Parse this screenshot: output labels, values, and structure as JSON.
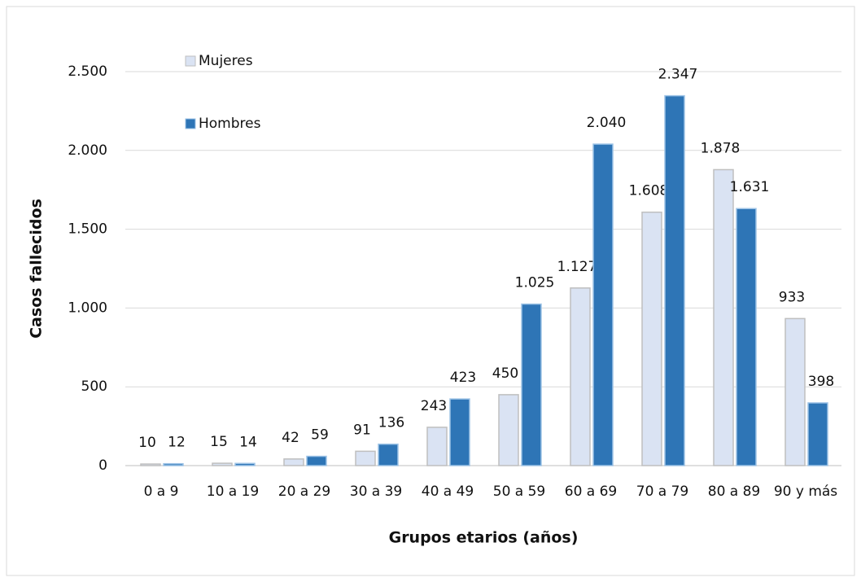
{
  "chart_data": {
    "type": "bar",
    "x_label": "Grupos etarios (años)",
    "y_label": "Casos fallecidos",
    "categories": [
      "0 a 9",
      "10 a 19",
      "20 a 29",
      "30 a 39",
      "40 a 49",
      "50 a 59",
      "60 a 69",
      "70 a 79",
      "80 a 89",
      "90 y más"
    ],
    "series": [
      {
        "name": "Mujeres",
        "color": "#dae3f3",
        "values": [
          10,
          15,
          42,
          91,
          243,
          450,
          1127,
          1608,
          1878,
          933
        ],
        "value_labels": [
          "10",
          "15",
          "42",
          "91",
          "243",
          "450",
          "1.127",
          "1.608",
          "1.878",
          "933"
        ]
      },
      {
        "name": "Hombres",
        "color": "#2e75b6",
        "values": [
          12,
          14,
          59,
          136,
          423,
          1025,
          2040,
          2347,
          1631,
          398
        ],
        "value_labels": [
          "12",
          "14",
          "59",
          "136",
          "423",
          "1.025",
          "2.040",
          "2.347",
          "1.631",
          "398"
        ]
      }
    ],
    "ylim": [
      0,
      2500
    ],
    "yticks": [
      0,
      500,
      {
        "value": 1000,
        "label": "1.000"
      },
      {
        "value": 1500,
        "label": "1.500"
      },
      {
        "value": 2000,
        "label": "2.000"
      },
      {
        "value": 2500,
        "label": "2.500"
      }
    ],
    "grid": true,
    "legend": "upper left"
  }
}
